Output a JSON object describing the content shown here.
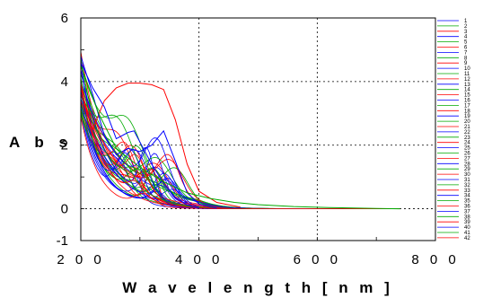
{
  "chart_data": {
    "type": "line",
    "xlabel": "W a v e l e n g t h  [ n m ]",
    "ylabel": "A b s",
    "xlim": [
      200,
      800
    ],
    "ylim": [
      -1,
      6
    ],
    "x_ticks": [
      {
        "value": 200,
        "label": "2 0 0"
      },
      {
        "value": 400,
        "label": "4 0 0"
      },
      {
        "value": 600,
        "label": "6 0 0"
      },
      {
        "value": 800,
        "label": "8 0 0"
      }
    ],
    "y_ticks": [
      {
        "value": -1,
        "label": "-1"
      },
      {
        "value": 0,
        "label": "0"
      },
      {
        "value": 2,
        "label": "2"
      },
      {
        "value": 4,
        "label": "4"
      },
      {
        "value": 6,
        "label": "6"
      }
    ],
    "grid": true,
    "legend_position": "right",
    "colors": [
      "#0000ff",
      "#00aa00",
      "#ff0000"
    ],
    "series_names": [
      "1",
      "2",
      "3",
      "4",
      "5",
      "6",
      "7",
      "8",
      "9",
      "10",
      "11",
      "12",
      "13",
      "14",
      "15",
      "16",
      "17",
      "18",
      "19",
      "20",
      "21",
      "22",
      "23",
      "24",
      "25",
      "26",
      "27",
      "28",
      "29",
      "30",
      "31",
      "32",
      "33",
      "34",
      "35",
      "36",
      "37",
      "38",
      "39",
      "40",
      "41",
      "42"
    ],
    "key_series": [
      {
        "name": "red-broad",
        "color": "#ff0000",
        "x": [
          205,
          220,
          240,
          260,
          280,
          300,
          320,
          340,
          360,
          380,
          400,
          430,
          470
        ],
        "y": [
          3.3,
          2.5,
          3.4,
          3.8,
          3.95,
          3.95,
          3.9,
          3.75,
          2.8,
          1.4,
          0.55,
          0.2,
          0.05
        ]
      },
      {
        "name": "blue-peak-350",
        "color": "#0000ff",
        "x": [
          200,
          220,
          240,
          260,
          280,
          300,
          320,
          340,
          360,
          380,
          400,
          430
        ],
        "y": [
          4.8,
          3.6,
          2.3,
          1.7,
          1.9,
          1.8,
          2.0,
          2.45,
          1.5,
          0.5,
          0.15,
          0.02
        ]
      },
      {
        "name": "blue-peak-290",
        "color": "#0000ff",
        "x": [
          200,
          220,
          240,
          260,
          280,
          290,
          300,
          320,
          340,
          360,
          380,
          400
        ],
        "y": [
          4.6,
          3.8,
          3.2,
          2.2,
          2.4,
          2.45,
          2.1,
          1.4,
          0.8,
          0.35,
          0.12,
          0.03
        ]
      },
      {
        "name": "green-tail",
        "color": "#00aa00",
        "x": [
          200,
          230,
          260,
          300,
          340,
          380,
          420,
          460,
          500,
          560,
          620,
          700,
          740
        ],
        "y": [
          4.5,
          3.0,
          1.9,
          1.3,
          0.85,
          0.5,
          0.32,
          0.2,
          0.13,
          0.07,
          0.04,
          0.01,
          0.0
        ]
      }
    ]
  }
}
